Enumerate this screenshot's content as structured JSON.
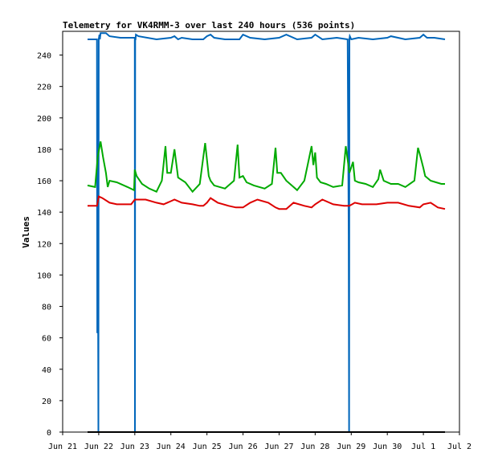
{
  "chart_data": {
    "type": "line",
    "title": "Telemetry for VK4RMM-3 over last 240 hours (536 points)",
    "xlabel": "",
    "ylabel": "Values",
    "xlim": [
      0,
      11
    ],
    "ylim": [
      0,
      250
    ],
    "grid": false,
    "legend": "none",
    "xticks": [
      "Jun 21",
      "Jun 22",
      "Jun 23",
      "Jun 24",
      "Jun 25",
      "Jun 26",
      "Jun 27",
      "Jun 28",
      "Jun 29",
      "Jun 30",
      "Jul 1",
      "Jul 2"
    ],
    "yticks": [
      0,
      20,
      40,
      60,
      80,
      100,
      120,
      140,
      160,
      180,
      200,
      220,
      240
    ],
    "series": [
      {
        "color": "#0066bb",
        "x": [
          0.69,
          0.95,
          0.96,
          0.97,
          0.99,
          1.0,
          1.02,
          1.03,
          1.05,
          1.2,
          1.3,
          1.6,
          2.0,
          2.005,
          2.01,
          2.02,
          2.03,
          2.1,
          2.6,
          3.0,
          3.1,
          3.2,
          3.3,
          3.6,
          3.9,
          4.0,
          4.1,
          4.2,
          4.5,
          4.9,
          5.0,
          5.2,
          5.6,
          6.0,
          6.2,
          6.5,
          6.9,
          7.0,
          7.2,
          7.6,
          7.9,
          7.93,
          7.94,
          7.95,
          7.96,
          8.0,
          8.2,
          8.6,
          9.0,
          9.1,
          9.5,
          9.9,
          10.0,
          10.1,
          10.3,
          10.6
        ],
        "values": [
          250,
          250,
          63,
          187,
          0,
          250,
          253,
          250,
          254,
          254,
          252,
          251,
          251,
          0,
          250,
          250,
          253,
          252,
          250,
          251,
          252,
          250,
          251,
          250,
          250,
          252,
          253,
          251,
          250,
          250,
          253,
          251,
          250,
          251,
          253,
          250,
          251,
          253,
          250,
          251,
          250,
          126,
          0,
          250,
          252,
          250,
          251,
          250,
          251,
          252,
          250,
          251,
          253,
          251,
          251,
          250
        ]
      },
      {
        "color": "#00aa00",
        "x": [
          0.69,
          0.9,
          0.97,
          1.05,
          1.12,
          1.2,
          1.25,
          1.3,
          1.5,
          1.8,
          1.98,
          2.0,
          2.05,
          2.2,
          2.4,
          2.6,
          2.75,
          2.85,
          2.9,
          3.0,
          3.1,
          3.2,
          3.4,
          3.6,
          3.8,
          3.95,
          4.05,
          4.1,
          4.2,
          4.5,
          4.75,
          4.85,
          4.9,
          5.0,
          5.1,
          5.3,
          5.6,
          5.8,
          5.9,
          5.95,
          6.05,
          6.2,
          6.35,
          6.5,
          6.7,
          6.9,
          6.95,
          7.0,
          7.05,
          7.15,
          7.3,
          7.5,
          7.75,
          7.85,
          7.95,
          8.05,
          8.1,
          8.2,
          8.4,
          8.6,
          8.75,
          8.8,
          8.9,
          9.1,
          9.3,
          9.5,
          9.75,
          9.85,
          9.9,
          10.0,
          10.05,
          10.2,
          10.35,
          10.5,
          10.6
        ],
        "values": [
          157,
          156,
          175,
          185,
          175,
          165,
          156,
          160,
          159,
          156,
          154,
          167,
          163,
          158,
          155,
          153,
          160,
          182,
          165,
          165,
          180,
          162,
          159,
          153,
          158,
          184,
          163,
          160,
          157,
          155,
          160,
          183,
          162,
          163,
          159,
          157,
          155,
          158,
          181,
          165,
          165,
          160,
          157,
          154,
          160,
          182,
          170,
          178,
          162,
          159,
          158,
          156,
          157,
          182,
          165,
          172,
          160,
          159,
          158,
          156,
          161,
          167,
          160,
          158,
          158,
          156,
          160,
          181,
          177,
          168,
          163,
          160,
          159,
          158,
          158
        ]
      },
      {
        "color": "#dd0000",
        "x": [
          0.69,
          0.95,
          1.0,
          1.1,
          1.3,
          1.5,
          1.9,
          2.0,
          2.3,
          2.6,
          2.8,
          2.9,
          3.0,
          3.1,
          3.3,
          3.6,
          3.8,
          3.9,
          4.0,
          4.1,
          4.3,
          4.6,
          4.8,
          5.0,
          5.2,
          5.4,
          5.7,
          5.9,
          6.0,
          6.2,
          6.4,
          6.7,
          6.9,
          7.0,
          7.2,
          7.5,
          7.8,
          7.95,
          8.1,
          8.3,
          8.7,
          9.0,
          9.3,
          9.6,
          9.9,
          10.0,
          10.2,
          10.4,
          10.6
        ],
        "values": [
          144,
          144,
          150,
          149,
          146,
          145,
          145,
          148,
          148,
          146,
          145,
          146,
          147,
          148,
          146,
          145,
          144,
          144,
          146,
          149,
          146,
          144,
          143,
          143,
          146,
          148,
          146,
          143,
          142,
          142,
          146,
          144,
          143,
          145,
          148,
          145,
          144,
          144,
          146,
          145,
          145,
          146,
          146,
          144,
          143,
          145,
          146,
          143,
          142
        ]
      },
      {
        "color": "#000000",
        "x": [
          0.69,
          10.6
        ],
        "values": [
          0,
          0
        ]
      }
    ]
  }
}
